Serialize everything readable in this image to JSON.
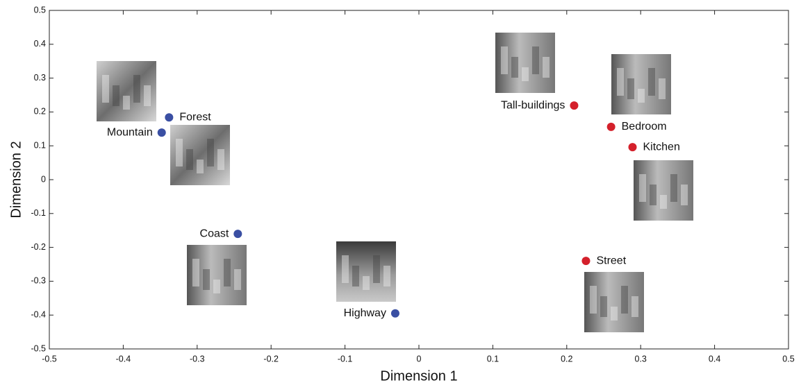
{
  "chart_data": {
    "type": "scatter",
    "xlabel": "Dimension 1",
    "ylabel": "Dimension 2",
    "xlim": [
      -0.5,
      0.5
    ],
    "ylim": [
      -0.5,
      0.5
    ],
    "xticks": [
      -0.5,
      -0.4,
      -0.3,
      -0.2,
      -0.1,
      0,
      0.1,
      0.2,
      0.3,
      0.4,
      0.5
    ],
    "yticks": [
      -0.5,
      -0.4,
      -0.3,
      -0.2,
      -0.1,
      0,
      0.1,
      0.2,
      0.3,
      0.4,
      0.5
    ],
    "points": [
      {
        "label": "Forest",
        "x": -0.338,
        "y": 0.184,
        "color": "#3a4fa3"
      },
      {
        "label": "Mountain",
        "x": -0.348,
        "y": 0.139,
        "color": "#3a4fa3"
      },
      {
        "label": "Coast",
        "x": -0.245,
        "y": -0.16,
        "color": "#3a4fa3"
      },
      {
        "label": "Highway",
        "x": -0.032,
        "y": -0.395,
        "color": "#3a4fa3"
      },
      {
        "label": "Tall-buildings",
        "x": 0.21,
        "y": 0.219,
        "color": "#d4202b"
      },
      {
        "label": "Bedroom",
        "x": 0.26,
        "y": 0.156,
        "color": "#d4202b"
      },
      {
        "label": "Kitchen",
        "x": 0.289,
        "y": 0.096,
        "color": "#d4202b"
      },
      {
        "label": "Street",
        "x": 0.226,
        "y": -0.24,
        "color": "#d4202b"
      }
    ]
  }
}
